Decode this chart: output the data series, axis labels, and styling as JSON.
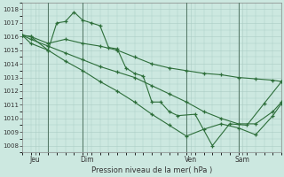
{
  "background_color": "#cce8e0",
  "grid_color": "#aaccc4",
  "line_color": "#2d6e3a",
  "title": "Pression niveau de la mer( hPa )",
  "ylim": [
    1007.5,
    1018.5
  ],
  "yticks": [
    1008,
    1009,
    1010,
    1011,
    1012,
    1013,
    1014,
    1015,
    1016,
    1017,
    1018
  ],
  "xlim": [
    0,
    30
  ],
  "day_labels": [
    "Jeu",
    "Dim",
    "Ven",
    "Sam"
  ],
  "day_positions": [
    1.5,
    7.5,
    19.5,
    25.5
  ],
  "vline_positions": [
    3,
    7,
    19,
    25
  ],
  "series": [
    {
      "x": [
        0,
        1,
        3,
        4,
        5,
        6,
        7,
        8,
        9,
        10,
        11,
        12,
        13,
        14,
        15,
        16,
        17,
        18,
        20,
        22,
        24,
        26,
        28,
        30
      ],
      "y": [
        1016.1,
        1016.0,
        1015.0,
        1017.0,
        1017.1,
        1017.8,
        1017.2,
        1017.0,
        1016.8,
        1015.2,
        1015.1,
        1013.7,
        1013.3,
        1013.1,
        1011.2,
        1011.2,
        1010.5,
        1010.2,
        1010.3,
        1008.0,
        1009.6,
        1009.5,
        1011.1,
        1012.7
      ],
      "marker": "+"
    },
    {
      "x": [
        0,
        1,
        3,
        5,
        7,
        9,
        11,
        13,
        15,
        17,
        19,
        21,
        23,
        25,
        27,
        29,
        30
      ],
      "y": [
        1016.1,
        1016.0,
        1015.5,
        1015.8,
        1015.5,
        1015.3,
        1015.0,
        1014.5,
        1014.0,
        1013.7,
        1013.5,
        1013.3,
        1013.2,
        1013.0,
        1012.9,
        1012.8,
        1012.7
      ],
      "marker": "+"
    },
    {
      "x": [
        0,
        1,
        3,
        5,
        7,
        9,
        11,
        13,
        15,
        17,
        19,
        21,
        23,
        25,
        27,
        29,
        30
      ],
      "y": [
        1016.1,
        1015.8,
        1015.3,
        1014.8,
        1014.3,
        1013.8,
        1013.4,
        1013.0,
        1012.4,
        1011.8,
        1011.2,
        1010.5,
        1010.0,
        1009.6,
        1009.6,
        1010.5,
        1011.2
      ],
      "marker": "+"
    },
    {
      "x": [
        0,
        1,
        3,
        5,
        7,
        9,
        11,
        13,
        15,
        17,
        19,
        21,
        23,
        25,
        27,
        29,
        30
      ],
      "y": [
        1016.1,
        1015.5,
        1015.0,
        1014.2,
        1013.5,
        1012.7,
        1012.0,
        1011.2,
        1010.3,
        1009.5,
        1008.7,
        1009.2,
        1009.6,
        1009.3,
        1008.8,
        1010.2,
        1011.1
      ],
      "marker": "+"
    }
  ]
}
